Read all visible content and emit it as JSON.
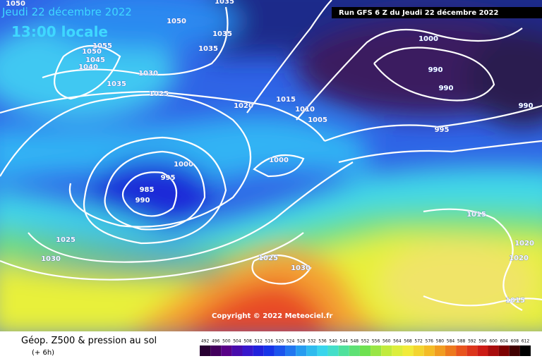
{
  "header": {
    "date": "Jeudi 22 décembre 2022",
    "time": "13:00 locale",
    "run": "Run GFS 6 Z du Jeudi 22 décembre 2022"
  },
  "map": {
    "isobar_labels": [
      1050,
      1050,
      1035,
      1055,
      1050,
      1045,
      1040,
      1035,
      1035,
      1030,
      1035,
      1025,
      1020,
      1015,
      1010,
      1005,
      1000,
      990,
      990,
      990,
      995,
      1000,
      1000,
      995,
      985,
      990,
      1025,
      1030,
      1025,
      1030,
      1015,
      1020,
      1020,
      1015
    ],
    "copyright": "Copyright © 2022 Meteociel.fr"
  },
  "legend": {
    "title": "Géop. Z500 & pression au sol",
    "subtitle": "(+ 6h)",
    "scale": [
      492,
      496,
      500,
      504,
      508,
      512,
      516,
      520,
      524,
      528,
      532,
      536,
      540,
      544,
      548,
      552,
      556,
      560,
      564,
      568,
      572,
      576,
      580,
      584,
      588,
      592,
      596,
      600,
      604,
      608,
      612
    ]
  }
}
